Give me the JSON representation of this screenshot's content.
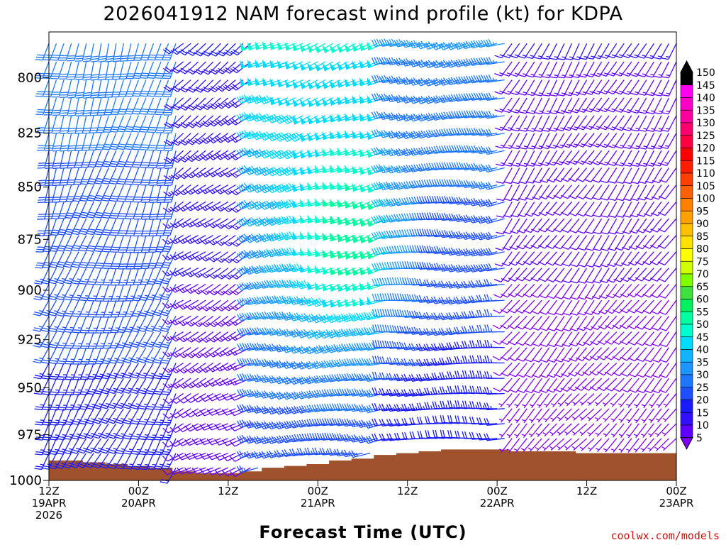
{
  "chart_data": {
    "type": "wind-barb-time-height",
    "title": "2026041912 NAM forecast wind profile (kt) for KDPA",
    "xlabel": "Forecast Time (UTC)",
    "ylabel": "",
    "y_axis": {
      "units": "hPa",
      "ylim": [
        1000,
        780
      ],
      "ticks": [
        800,
        825,
        850,
        875,
        900,
        925,
        950,
        975,
        1000
      ]
    },
    "x_axis": {
      "units": "forecast hour",
      "xlim": [
        0,
        84
      ],
      "ticks": [
        {
          "hour": 0,
          "label": [
            "12Z",
            "19APR",
            "2026"
          ]
        },
        {
          "hour": 12,
          "label": [
            "00Z",
            "20APR"
          ]
        },
        {
          "hour": 24,
          "label": [
            "12Z"
          ]
        },
        {
          "hour": 36,
          "label": [
            "00Z",
            "21APR"
          ]
        },
        {
          "hour": 48,
          "label": [
            "12Z"
          ]
        },
        {
          "hour": 60,
          "label": [
            "00Z",
            "22APR"
          ]
        },
        {
          "hour": 72,
          "label": [
            "12Z"
          ]
        },
        {
          "hour": 84,
          "label": [
            "00Z",
            "23APR"
          ]
        }
      ]
    },
    "colorbar": {
      "units": "kt",
      "levels": [
        5,
        10,
        15,
        20,
        25,
        30,
        35,
        40,
        45,
        50,
        55,
        60,
        65,
        70,
        75,
        80,
        85,
        90,
        95,
        100,
        105,
        110,
        115,
        120,
        125,
        130,
        135,
        140,
        145,
        150
      ],
      "colors": [
        "#8000ff",
        "#6000ff",
        "#3010ff",
        "#1a1aff",
        "#1e50ff",
        "#1e78ff",
        "#1e96ff",
        "#10b4ff",
        "#00dcff",
        "#00ffd0",
        "#00ffa0",
        "#00f060",
        "#40e040",
        "#80ff00",
        "#d0ff00",
        "#ffff00",
        "#ffe000",
        "#ffc000",
        "#ffa000",
        "#ff8000",
        "#ff6000",
        "#ff4000",
        "#ff1e00",
        "#ff0000",
        "#ff0040",
        "#ff0070",
        "#ff00a0",
        "#ff00c8",
        "#ff00f0",
        "#000000"
      ]
    },
    "surface_pressure": {
      "hours": [
        0,
        3,
        6,
        9,
        12,
        15,
        18,
        21,
        24,
        27,
        30,
        33,
        36,
        39,
        42,
        45,
        48,
        51,
        54,
        57,
        60,
        63,
        66,
        69,
        72,
        75,
        78,
        81,
        84
      ],
      "values": [
        989,
        989,
        990,
        991,
        992,
        993,
        995,
        996,
        996,
        995,
        993,
        992,
        991,
        989,
        988,
        986,
        985,
        984,
        983,
        983,
        983,
        984,
        984,
        984,
        985,
        985,
        985,
        985,
        985
      ]
    },
    "wind_field": {
      "description": "Barbs drawn every 1 h on every 8 hPa from 785 to 1000 hPa, below ground suppressed",
      "phases": [
        {
          "hours": [
            0,
            18
          ],
          "dir_deg": 195,
          "speed_kt": [
            22,
            32
          ]
        },
        {
          "hours": [
            18,
            28
          ],
          "dir_deg": 230,
          "speed_kt": [
            10,
            20
          ]
        },
        {
          "hours": [
            28,
            46
          ],
          "dir_deg": 245,
          "speed_kt": [
            25,
            50
          ]
        },
        {
          "hours": [
            46,
            62
          ],
          "dir_deg": 255,
          "speed_kt": [
            20,
            35
          ]
        },
        {
          "hours": [
            62,
            84
          ],
          "dir_deg": 210,
          "speed_kt": [
            5,
            15
          ]
        }
      ]
    }
  },
  "credit": "coolwx.com/models"
}
